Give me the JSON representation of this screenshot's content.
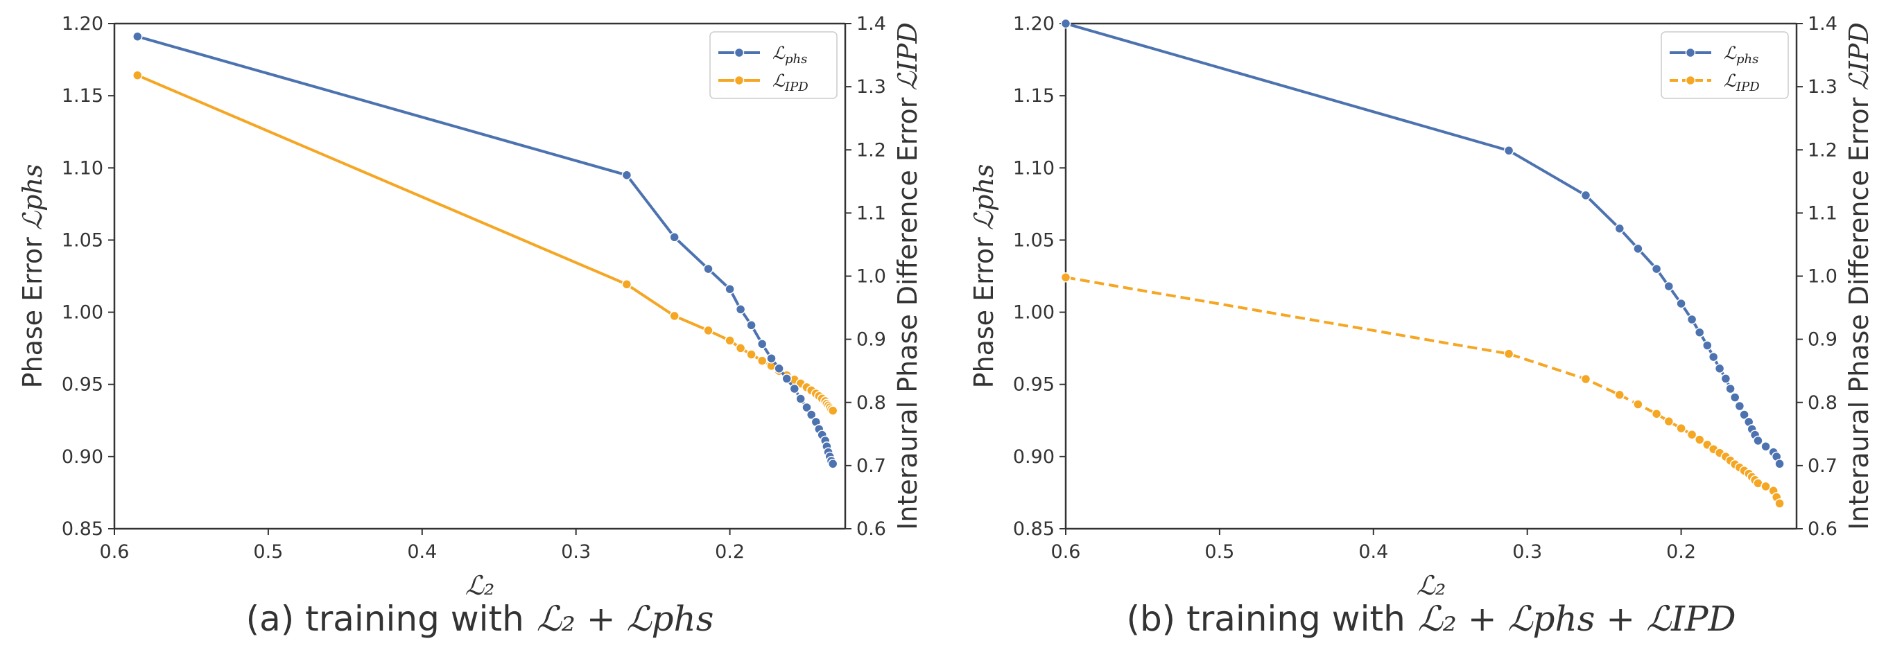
{
  "colors": {
    "phs": "#4c72b0",
    "ipd": "#f5a623",
    "axis": "#333333"
  },
  "chart_data": [
    {
      "type": "line",
      "panel_id": "a",
      "caption": {
        "prefix": "(a) training with",
        "math": "ℒ₂ + ℒphs"
      },
      "xlabel": "ℒ₂",
      "ylabel_left": {
        "text": "Phase Error",
        "math": "ℒphs"
      },
      "ylabel_right": {
        "text": "Interaural Phase Difference Error",
        "math": "ℒIPD"
      },
      "xlim": [
        0.6,
        0.125
      ],
      "ylim_left": [
        0.85,
        1.2
      ],
      "ylim_right": [
        0.6,
        1.4
      ],
      "xticks": [
        0.6,
        0.5,
        0.4,
        0.3,
        0.2
      ],
      "xtick_labels": [
        "0.6",
        "0.5",
        "0.4",
        "0.3",
        "0.2"
      ],
      "yticks_left": [
        0.85,
        0.9,
        0.95,
        1.0,
        1.05,
        1.1,
        1.15,
        1.2
      ],
      "ytick_labels_left": [
        "0.85",
        "0.90",
        "0.95",
        "1.00",
        "1.05",
        "1.10",
        "1.15",
        "1.20"
      ],
      "yticks_right": [
        0.6,
        0.7,
        0.8,
        0.9,
        1.0,
        1.1,
        1.2,
        1.3,
        1.4
      ],
      "ytick_labels_right": [
        "0.6",
        "0.7",
        "0.8",
        "0.9",
        "1.0",
        "1.1",
        "1.2",
        "1.3",
        "1.4"
      ],
      "legend_position": "top-right",
      "series": [
        {
          "name": "ℒphs",
          "label_base": "ℒ",
          "label_sub": "phs",
          "axis": "left",
          "style": "solid",
          "color_key": "phs",
          "x": [
            0.585,
            0.267,
            0.236,
            0.214,
            0.2,
            0.193,
            0.186,
            0.179,
            0.173,
            0.168,
            0.163,
            0.158,
            0.154,
            0.15,
            0.147,
            0.144,
            0.142,
            0.14,
            0.138,
            0.137,
            0.136,
            0.135,
            0.134,
            0.133
          ],
          "y": [
            1.191,
            1.095,
            1.052,
            1.03,
            1.016,
            1.002,
            0.991,
            0.978,
            0.968,
            0.961,
            0.954,
            0.947,
            0.94,
            0.934,
            0.929,
            0.924,
            0.919,
            0.915,
            0.911,
            0.907,
            0.903,
            0.9,
            0.897,
            0.895
          ]
        },
        {
          "name": "ℒIPD",
          "label_base": "ℒ",
          "label_sub": "IPD",
          "axis": "right",
          "style": "solid",
          "color_key": "ipd",
          "x": [
            0.585,
            0.267,
            0.236,
            0.214,
            0.2,
            0.193,
            0.186,
            0.179,
            0.173,
            0.168,
            0.163,
            0.158,
            0.154,
            0.15,
            0.147,
            0.144,
            0.142,
            0.14,
            0.138,
            0.137,
            0.136,
            0.135,
            0.134,
            0.133
          ],
          "y": [
            1.318,
            0.987,
            0.937,
            0.914,
            0.898,
            0.886,
            0.876,
            0.866,
            0.858,
            0.85,
            0.843,
            0.836,
            0.83,
            0.824,
            0.819,
            0.814,
            0.81,
            0.806,
            0.802,
            0.798,
            0.795,
            0.792,
            0.789,
            0.787
          ]
        }
      ]
    },
    {
      "type": "line",
      "panel_id": "b",
      "caption": {
        "prefix": "(b) training with",
        "math": "ℒ₂ + ℒphs + ℒIPD"
      },
      "xlabel": "ℒ₂",
      "ylabel_left": {
        "text": "Phase Error",
        "math": "ℒphs"
      },
      "ylabel_right": {
        "text": "Interaural Phase Difference Error",
        "math": "ℒIPD"
      },
      "xlim": [
        0.6,
        0.125
      ],
      "ylim_left": [
        0.85,
        1.2
      ],
      "ylim_right": [
        0.6,
        1.4
      ],
      "xticks": [
        0.6,
        0.5,
        0.4,
        0.3,
        0.2
      ],
      "xtick_labels": [
        "0.6",
        "0.5",
        "0.4",
        "0.3",
        "0.2"
      ],
      "yticks_left": [
        0.85,
        0.9,
        0.95,
        1.0,
        1.05,
        1.1,
        1.15,
        1.2
      ],
      "ytick_labels_left": [
        "0.85",
        "0.90",
        "0.95",
        "1.00",
        "1.05",
        "1.10",
        "1.15",
        "1.20"
      ],
      "yticks_right": [
        0.6,
        0.7,
        0.8,
        0.9,
        1.0,
        1.1,
        1.2,
        1.3,
        1.4
      ],
      "ytick_labels_right": [
        "0.6",
        "0.7",
        "0.8",
        "0.9",
        "1.0",
        "1.1",
        "1.2",
        "1.3",
        "1.4"
      ],
      "legend_position": "top-right",
      "series": [
        {
          "name": "ℒphs",
          "label_base": "ℒ",
          "label_sub": "phs",
          "axis": "left",
          "style": "solid",
          "color_key": "phs",
          "x": [
            0.6,
            0.312,
            0.262,
            0.24,
            0.228,
            0.216,
            0.208,
            0.2,
            0.193,
            0.188,
            0.183,
            0.179,
            0.175,
            0.171,
            0.168,
            0.165,
            0.162,
            0.159,
            0.156,
            0.154,
            0.152,
            0.15,
            0.145,
            0.14,
            0.138,
            0.136
          ],
          "y": [
            1.2,
            1.112,
            1.081,
            1.058,
            1.044,
            1.03,
            1.018,
            1.006,
            0.995,
            0.986,
            0.977,
            0.969,
            0.961,
            0.954,
            0.947,
            0.941,
            0.935,
            0.929,
            0.924,
            0.919,
            0.915,
            0.911,
            0.907,
            0.903,
            0.9,
            0.895
          ]
        },
        {
          "name": "ℒIPD",
          "label_base": "ℒ",
          "label_sub": "IPD",
          "axis": "right",
          "style": "dashed",
          "color_key": "ipd",
          "x": [
            0.6,
            0.312,
            0.262,
            0.24,
            0.228,
            0.216,
            0.208,
            0.2,
            0.193,
            0.188,
            0.183,
            0.179,
            0.175,
            0.171,
            0.168,
            0.165,
            0.162,
            0.159,
            0.156,
            0.154,
            0.152,
            0.15,
            0.145,
            0.14,
            0.138,
            0.136
          ],
          "y": [
            0.998,
            0.877,
            0.837,
            0.812,
            0.797,
            0.782,
            0.77,
            0.759,
            0.749,
            0.741,
            0.733,
            0.726,
            0.72,
            0.714,
            0.708,
            0.702,
            0.697,
            0.692,
            0.687,
            0.682,
            0.677,
            0.672,
            0.667,
            0.66,
            0.65,
            0.64
          ]
        }
      ]
    }
  ]
}
